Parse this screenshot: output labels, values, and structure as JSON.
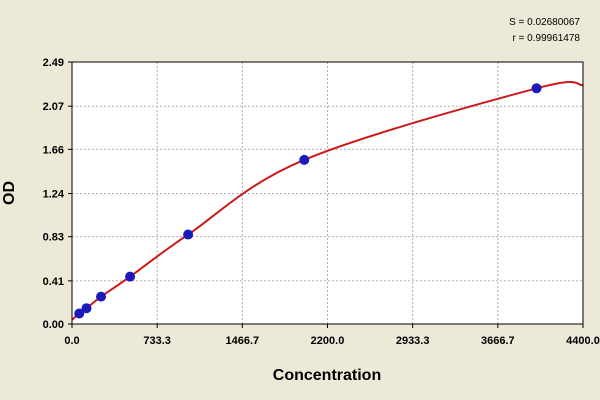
{
  "chart_data": {
    "type": "scatter",
    "xlabel": "Concentration",
    "ylabel": "OD",
    "xlim": [
      0,
      4400
    ],
    "ylim": [
      0,
      2.49
    ],
    "x_ticks": [
      "0.0",
      "733.3",
      "1466.7",
      "2200.0",
      "2933.3",
      "3666.7",
      "4400.0"
    ],
    "y_ticks": [
      "0.00",
      "0.41",
      "0.83",
      "1.24",
      "1.66",
      "2.07",
      "2.49"
    ],
    "grid": true,
    "stats": [
      "S = 0.02680067",
      "r = 0.99961478"
    ],
    "colors": {
      "points": "#1a1ab8",
      "curve": "#cc1a1a",
      "plot_bg": "#ffffff",
      "grid": "#b0b0b0",
      "background": "#ece9d8"
    },
    "series": [
      {
        "x": [
          62.5,
          125,
          250,
          500,
          1000,
          2000,
          4000
        ],
        "y": [
          0.1,
          0.15,
          0.26,
          0.45,
          0.85,
          1.56,
          2.24
        ]
      }
    ],
    "fit_curve": {
      "x": [
        0,
        62.5,
        125,
        250,
        500,
        1000,
        2000,
        4000,
        4400
      ],
      "y": [
        0.04,
        0.1,
        0.15,
        0.26,
        0.45,
        0.85,
        1.56,
        2.24,
        2.27
      ]
    }
  }
}
